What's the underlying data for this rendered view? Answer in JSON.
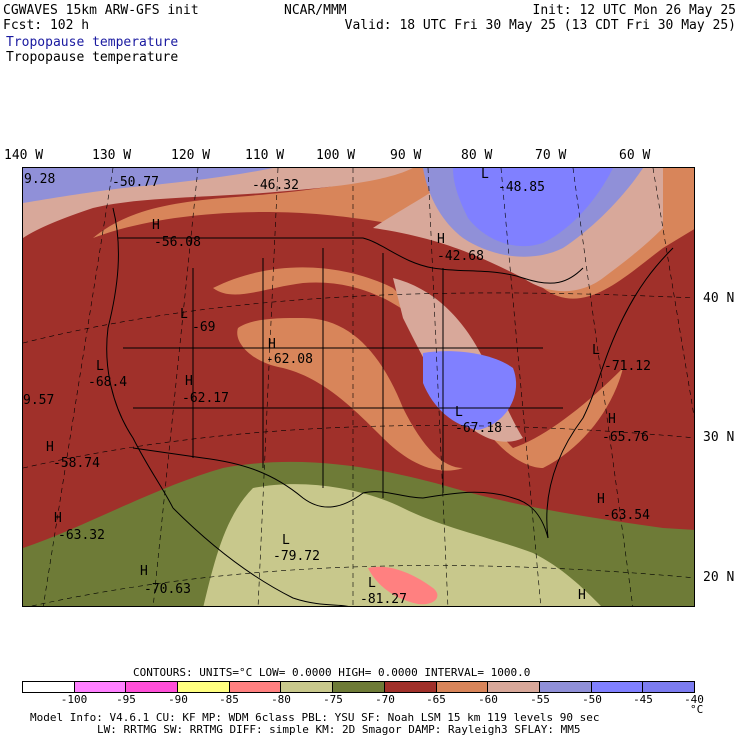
{
  "header": {
    "left1": "CGWAVES 15km ARW-GFS init",
    "left2": "Fcst:  102 h",
    "center": "NCAR/MMM",
    "right1": "Init: 12 UTC Mon 26 May 25",
    "right2": "Valid: 18 UTC Fri 30 May 25 (13 CDT Fri 30 May 25)",
    "field1": "Tropopause temperature",
    "field2": "Tropopause temperature"
  },
  "lon_labels": [
    "140 W",
    "130 W",
    "120 W",
    "110 W",
    "100 W",
    "90 W",
    "80 W",
    "70 W",
    "60 W"
  ],
  "lat_labels": [
    "40 N",
    "30 N",
    "20 N"
  ],
  "extrema": [
    {
      "kind": "",
      "value": "9.28"
    },
    {
      "kind": "",
      "value": "-50.77"
    },
    {
      "kind": "",
      "value": "-46.32"
    },
    {
      "kind": "L",
      "value": "-48.85"
    },
    {
      "kind": "H",
      "value": "-56.08"
    },
    {
      "kind": "H",
      "value": "-42.68"
    },
    {
      "kind": "L",
      "value": "-69"
    },
    {
      "kind": "H",
      "value": "-62.08"
    },
    {
      "kind": "L",
      "value": "-68.4"
    },
    {
      "kind": "H",
      "value": "-62.17"
    },
    {
      "kind": "",
      "value": "9.57"
    },
    {
      "kind": "L",
      "value": "-71.12"
    },
    {
      "kind": "L",
      "value": "-67.18"
    },
    {
      "kind": "H",
      "value": "-65.76"
    },
    {
      "kind": "H",
      "value": "-58.74"
    },
    {
      "kind": "H",
      "value": "-63.54"
    },
    {
      "kind": "H",
      "value": "-63.32"
    },
    {
      "kind": "L",
      "value": "-79.72"
    },
    {
      "kind": "H",
      "value": "-70.63"
    },
    {
      "kind": "L",
      "value": "-81.27"
    },
    {
      "kind": "H",
      "value": ""
    }
  ],
  "contours_line": "CONTOURS:  UNITS=°C  LOW=  0.0000       HIGH=  0.0000       INTERVAL=   1000.0",
  "legend": {
    "colors": [
      "#ffffff",
      "#ff80ff",
      "#ff4fd8",
      "#ffff80",
      "#ff8080",
      "#c8c88c",
      "#6e7b37",
      "#a0302a",
      "#d8855a",
      "#d8a89a",
      "#9090d8",
      "#8080ff",
      "#7c7cf0"
    ],
    "labels": [
      "-100",
      "-95",
      "-90",
      "-85",
      "-80",
      "-75",
      "-70",
      "-65",
      "-60",
      "-55",
      "-50",
      "-45",
      "-40"
    ],
    "unit": "°C"
  },
  "footer": {
    "line1": "Model Info: V4.6.1     CU: KF     MP: WDM 6class  PBL: YSU      SF: Noah LSM     15 km  119 levels  90 sec",
    "line2": "LW: RRTMG   SW: RRTMG  DIFF: simple KM: 2D Smagor DAMP: Rayleigh3  SFLAY: MM5"
  }
}
